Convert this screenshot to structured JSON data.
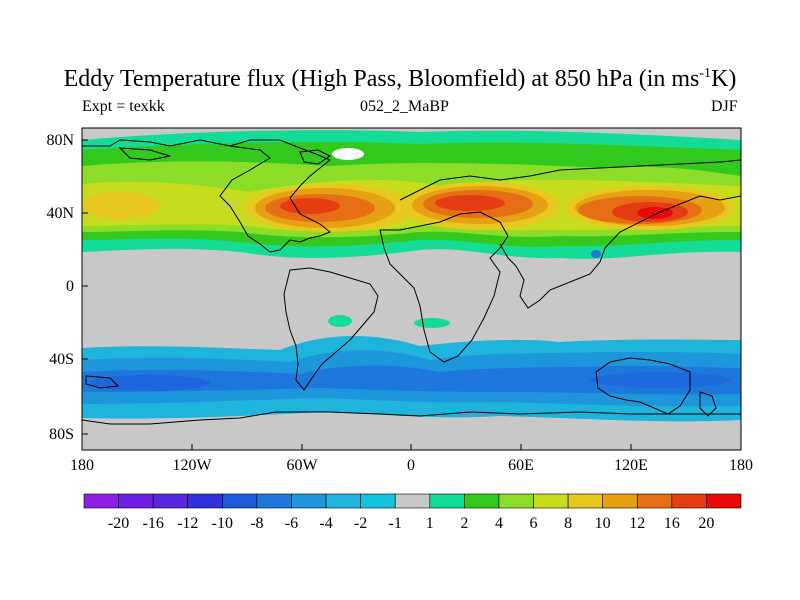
{
  "title": {
    "main": "Eddy Temperature flux (High Pass, Bloomfield) at 850 hPa (in ms",
    "sup": "-1",
    "end": "K)"
  },
  "subtitle": {
    "left": "Expt = texkk",
    "center": "052_2_MaBP",
    "right": "DJF"
  },
  "map": {
    "lon_labels": [
      "180",
      "120W",
      "60W",
      "0",
      "60E",
      "120E",
      "180"
    ],
    "lat_labels": [
      "80N",
      "40N",
      "0",
      "40S",
      "80S"
    ]
  },
  "colorbar": {
    "labels": [
      "-20",
      "-16",
      "-12",
      "-10",
      "-8",
      "-6",
      "-4",
      "-2",
      "-1",
      "1",
      "2",
      "4",
      "6",
      "8",
      "10",
      "12",
      "16",
      "20"
    ],
    "colors": [
      "#8c1ee6",
      "#6e1ee6",
      "#5a28dc",
      "#3232dc",
      "#1e5adc",
      "#1e78dc",
      "#1e96dc",
      "#1eb4dc",
      "#14c3dc",
      "#c8c8c8",
      "#14dc96",
      "#32c81e",
      "#8cdc28",
      "#c8dc1e",
      "#e6c81e",
      "#e6a014",
      "#e66e14",
      "#e63c14",
      "#e60a0a"
    ]
  }
}
